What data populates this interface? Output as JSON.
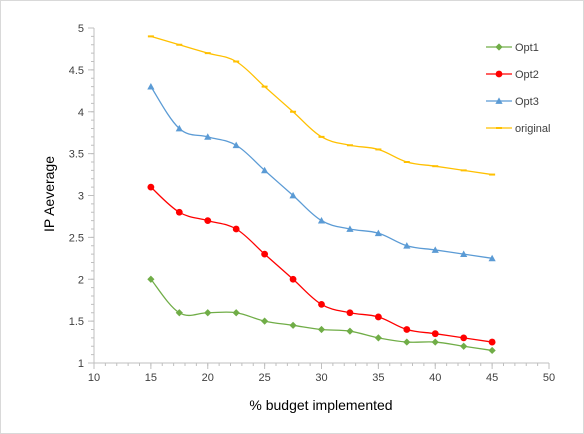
{
  "chart_data": {
    "type": "line",
    "title": "",
    "xlabel": "% budget implemented",
    "ylabel": "IP Aeverage",
    "xlim": [
      10,
      50
    ],
    "ylim": [
      1,
      5
    ],
    "xticks": [
      10,
      15,
      20,
      25,
      30,
      35,
      40,
      45,
      50
    ],
    "yticks": [
      1,
      1.5,
      2,
      2.5,
      3,
      3.5,
      4,
      4.5,
      5
    ],
    "grid": false,
    "legend_position": "top-right",
    "x": [
      15,
      17.5,
      20,
      22.5,
      25,
      27.5,
      30,
      32.5,
      35,
      37.5,
      40,
      42.5,
      45
    ],
    "series": [
      {
        "name": "Opt1",
        "color": "#70ad47",
        "marker": "diamond",
        "values": [
          2.0,
          1.6,
          1.6,
          1.6,
          1.5,
          1.45,
          1.4,
          1.38,
          1.3,
          1.25,
          1.25,
          1.2,
          1.15
        ]
      },
      {
        "name": "Opt2",
        "color": "#ff0000",
        "marker": "circle",
        "values": [
          3.1,
          2.8,
          2.7,
          2.6,
          2.3,
          2.0,
          1.7,
          1.6,
          1.55,
          1.4,
          1.35,
          1.3,
          1.25
        ]
      },
      {
        "name": "Opt3",
        "color": "#5b9bd5",
        "marker": "triangle",
        "values": [
          4.3,
          3.8,
          3.7,
          3.6,
          3.3,
          3.0,
          2.7,
          2.6,
          2.55,
          2.4,
          2.35,
          2.3,
          2.25
        ]
      },
      {
        "name": "original",
        "color": "#ffc000",
        "marker": "dash",
        "values": [
          4.9,
          4.8,
          4.7,
          4.6,
          4.3,
          4.0,
          3.7,
          3.6,
          3.55,
          3.4,
          3.35,
          3.3,
          3.25
        ]
      }
    ]
  }
}
